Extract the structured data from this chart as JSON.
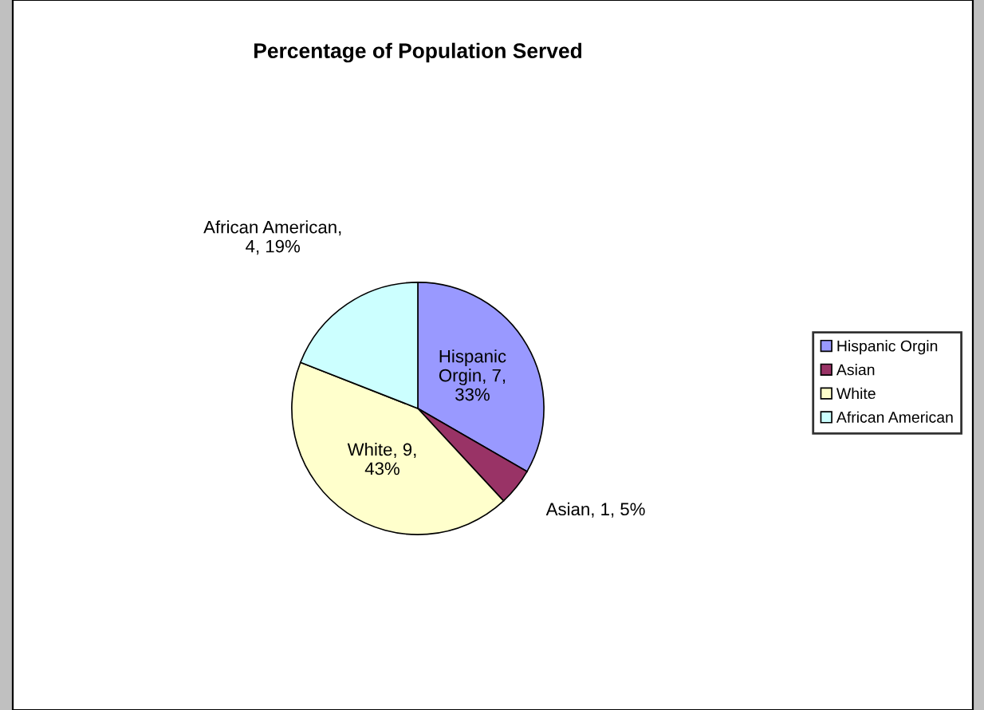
{
  "chart_data": {
    "type": "pie",
    "title": "Percentage of Population Served",
    "categories": [
      "Hispanic Orgin",
      "Asian",
      "White",
      "African American"
    ],
    "values": [
      7,
      1,
      9,
      4
    ],
    "colors": [
      "#9999ff",
      "#993366",
      "#ffffcc",
      "#ccffff"
    ],
    "value_labels": [
      "Hispanic\nOrgin, 7,\n33%",
      "Asian, 1, 5%",
      "White, 9,\n43%",
      "African American,\n4, 19%"
    ],
    "legend": "right"
  }
}
